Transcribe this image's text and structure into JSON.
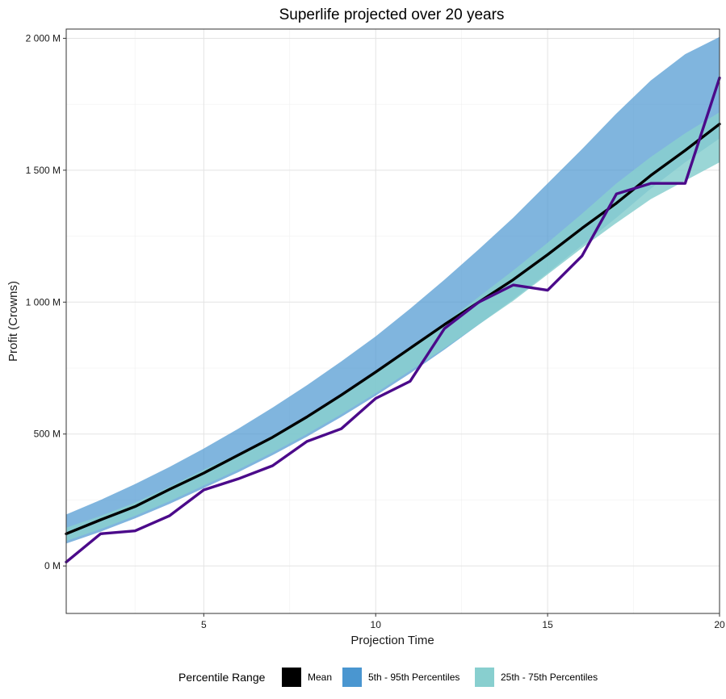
{
  "chart_data": {
    "type": "area",
    "title": "Superlife projected over 20 years",
    "xlabel": "Projection Time",
    "ylabel": "Profit (Crowns)",
    "xlim": [
      1,
      20
    ],
    "ylim": [
      -180,
      2035
    ],
    "x_ticks": [
      5,
      10,
      15,
      20
    ],
    "y_ticks": [
      0,
      500,
      1000,
      1500,
      2000
    ],
    "y_tick_labels": [
      "0 M",
      "500 M",
      "1 000 M",
      "1 500 M",
      "2 000 M"
    ],
    "grid": true,
    "legend": {
      "title": "Percentile Range",
      "position": "bottom",
      "entries": [
        {
          "label": "Mean",
          "color": "#000000"
        },
        {
          "label": "5th - 95th Percentiles",
          "color": "#4a96d0"
        },
        {
          "label": "25th - 75th Percentiles",
          "color": "#88cfcf"
        }
      ]
    },
    "x": [
      1,
      2,
      3,
      4,
      5,
      6,
      7,
      8,
      9,
      10,
      11,
      12,
      13,
      14,
      15,
      16,
      17,
      18,
      19,
      20
    ],
    "band_5_95": {
      "lower": [
        85,
        130,
        180,
        235,
        295,
        355,
        420,
        490,
        565,
        645,
        730,
        820,
        915,
        1010,
        1110,
        1215,
        1320,
        1430,
        1530,
        1620
      ],
      "upper": [
        195,
        250,
        310,
        375,
        445,
        520,
        600,
        685,
        775,
        870,
        975,
        1085,
        1200,
        1320,
        1450,
        1580,
        1715,
        1840,
        1940,
        2005
      ]
    },
    "band_25_75": {
      "lower": [
        95,
        140,
        190,
        245,
        305,
        365,
        430,
        500,
        575,
        655,
        740,
        825,
        915,
        1005,
        1105,
        1205,
        1300,
        1390,
        1460,
        1530
      ],
      "upper": [
        145,
        190,
        240,
        300,
        365,
        425,
        495,
        570,
        650,
        735,
        825,
        920,
        1020,
        1120,
        1225,
        1335,
        1450,
        1550,
        1640,
        1720
      ]
    },
    "series": [
      {
        "values": [
          122,
          175,
          225,
          290,
          352,
          420,
          488,
          565,
          648,
          735,
          825,
          915,
          1000,
          1085,
          1180,
          1280,
          1375,
          1480,
          1575,
          1675
        ],
        "color": "#000000"
      },
      {
        "values": [
          15,
          122,
          133,
          190,
          288,
          330,
          380,
          472,
          520,
          635,
          700,
          900,
          1000,
          1065,
          1045,
          1175,
          1410,
          1450,
          1450,
          1850
        ],
        "color": "#4b0a8a"
      }
    ]
  }
}
